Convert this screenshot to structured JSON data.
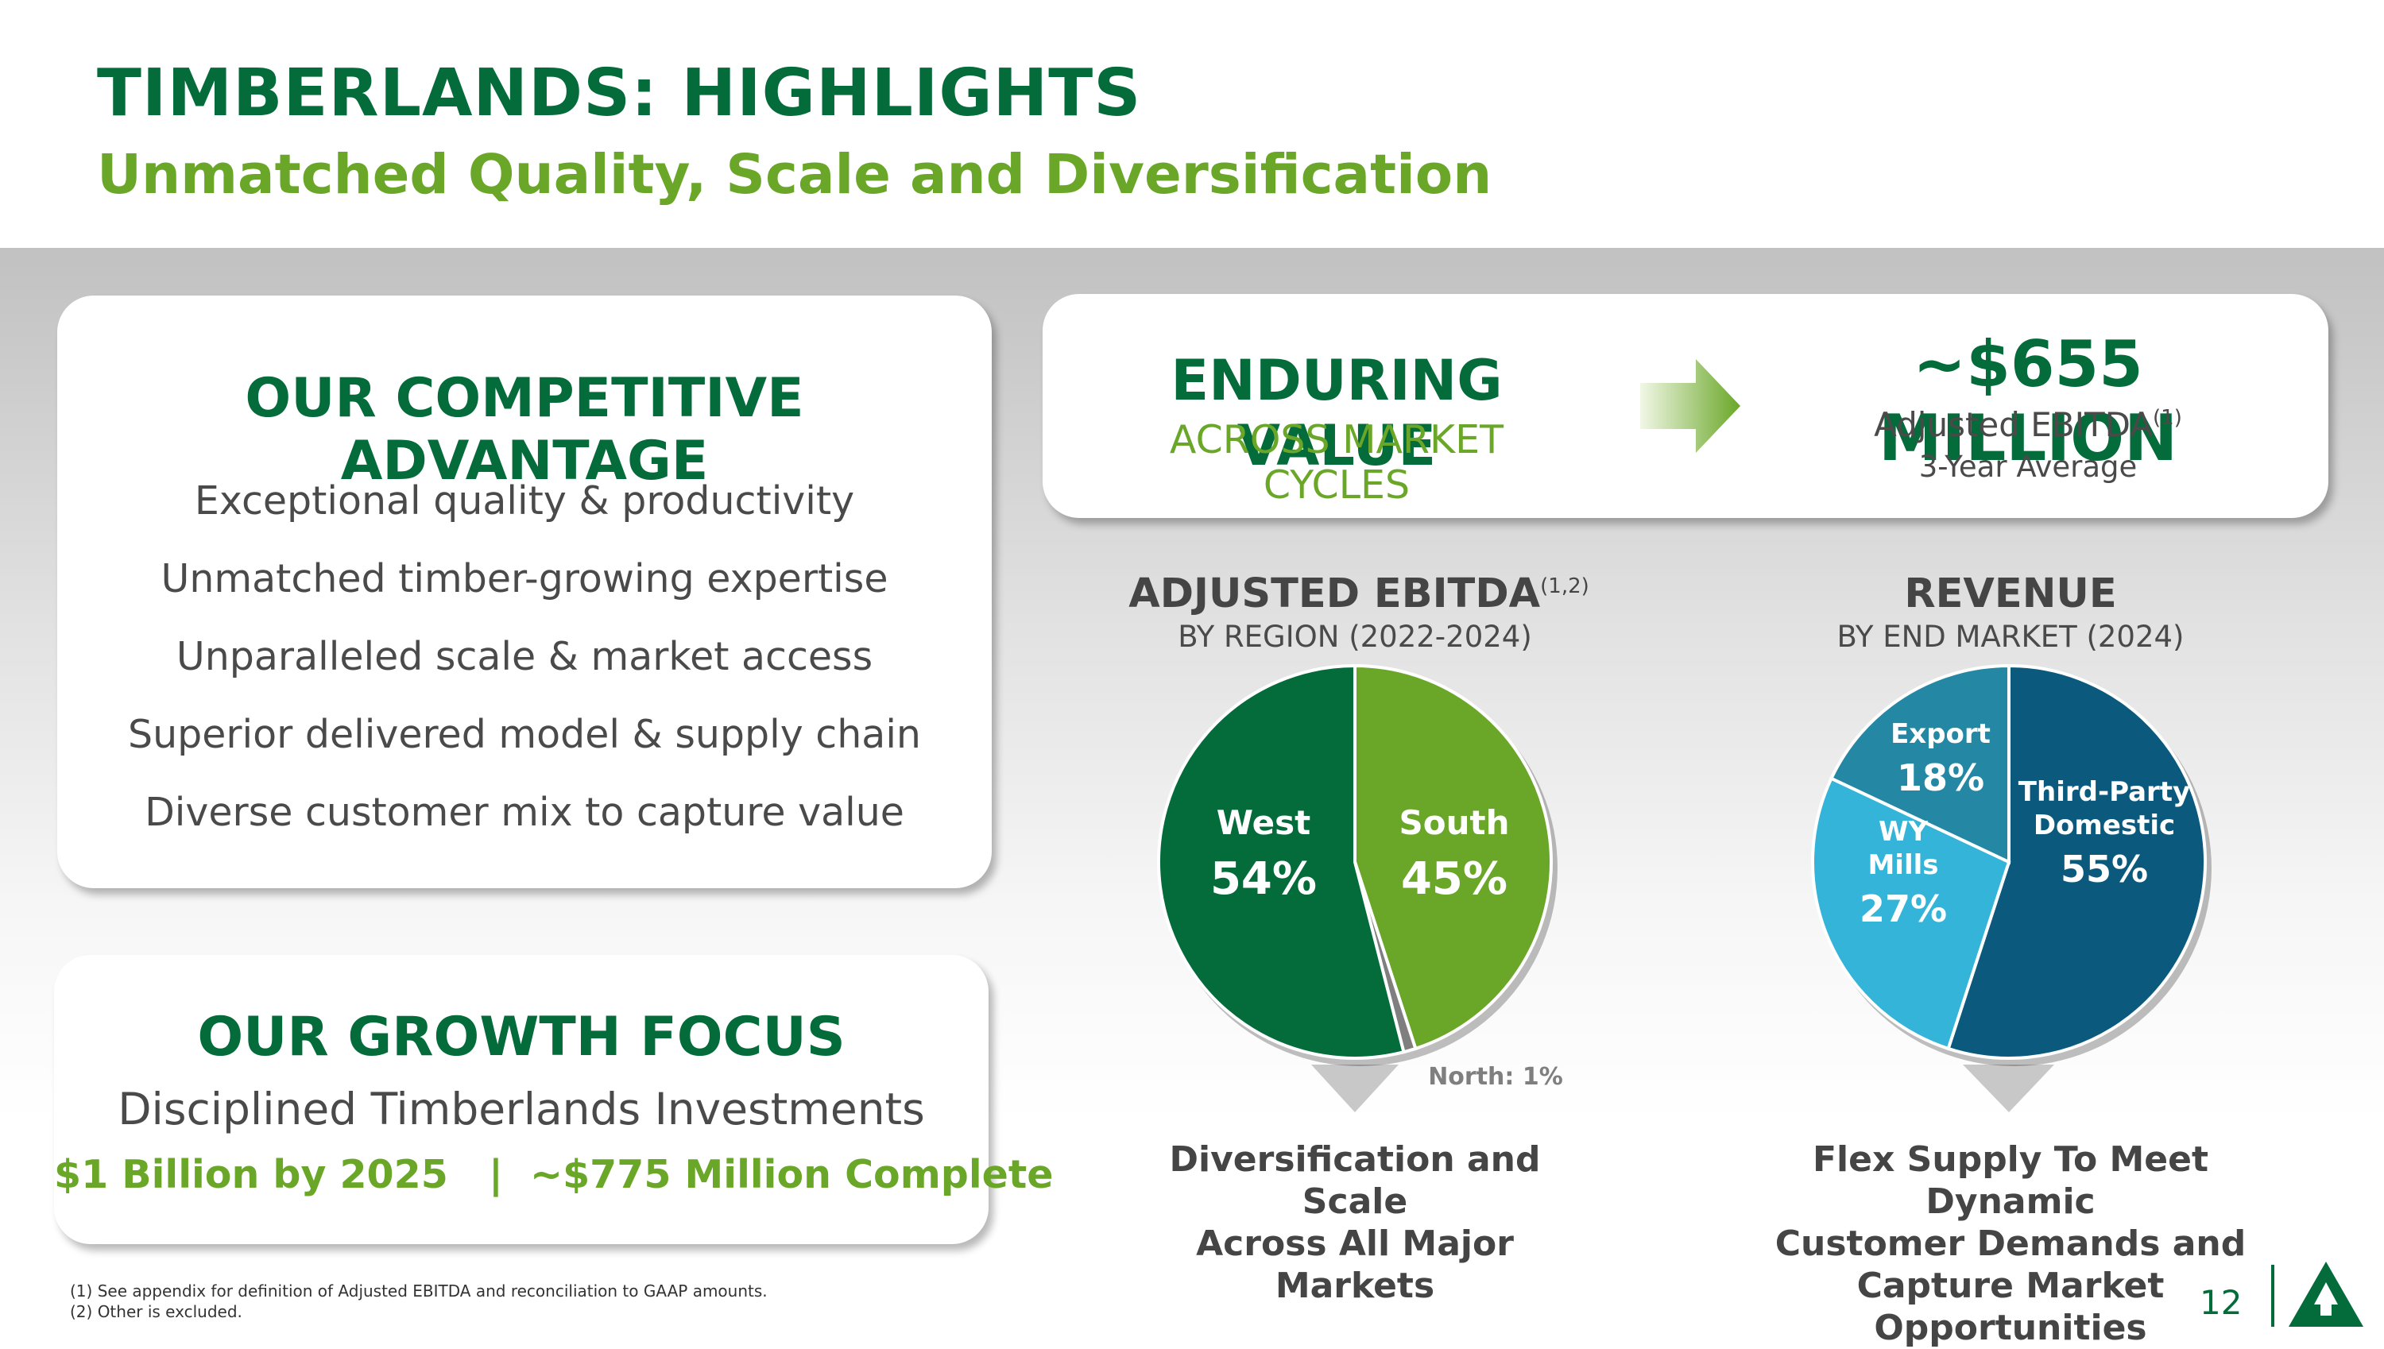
{
  "header": {
    "title": "TIMBERLANDS: HIGHLIGHTS",
    "subtitle": "Unmatched Quality, Scale and Diversification"
  },
  "advantage": {
    "title": "OUR COMPETITIVE ADVANTAGE",
    "items": [
      "Exceptional quality & productivity",
      "Unmatched timber-growing expertise",
      "Unparalleled scale & market access",
      "Superior delivered model & supply chain",
      "Diverse customer mix to capture value"
    ]
  },
  "growth": {
    "title": "OUR GROWTH FOCUS",
    "subtitle": "Disciplined Timberlands Investments",
    "goal": "$1 Billion by 2025   |  ~$775 Million Complete"
  },
  "value": {
    "title": "ENDURING VALUE",
    "subtitle": "ACROSS MARKET CYCLES",
    "amount": "~$655 MILLION",
    "label": "Adjusted EBITDA",
    "label_note": "(1)",
    "period": "3-Year Average"
  },
  "colors": {
    "dark_green": "#046b3a",
    "light_green": "#6aa728",
    "grey_slice": "#7f7f7f",
    "navy": "#0b5a7e",
    "light_blue": "#33b4d8",
    "teal": "#2488a5"
  },
  "chart_data": [
    {
      "type": "pie",
      "title": "ADJUSTED EBITDA",
      "title_note": "(1,2)",
      "subtitle": "BY REGION (2022-2024)",
      "slices": [
        {
          "label": "South",
          "value": 45,
          "display": "45%",
          "color": "#6aa728"
        },
        {
          "label": "North",
          "value": 1,
          "display": "North: 1%",
          "color": "#7f7f7f"
        },
        {
          "label": "West",
          "value": 54,
          "display": "54%",
          "color": "#046b3a"
        }
      ],
      "caption": [
        "Diversification and Scale",
        "Across All Major Markets"
      ]
    },
    {
      "type": "pie",
      "title": "REVENUE",
      "subtitle": "BY END MARKET (2024)",
      "slices": [
        {
          "label": "Third-Party Domestic",
          "label_lines": [
            "Third-Party",
            "Domestic"
          ],
          "value": 55,
          "display": "55%",
          "color": "#0b5a7e"
        },
        {
          "label": "WY Mills",
          "label_lines": [
            "WY",
            "Mills"
          ],
          "value": 27,
          "display": "27%",
          "color": "#33b4d8"
        },
        {
          "label": "Export",
          "label_lines": [
            "Export"
          ],
          "value": 18,
          "display": "18%",
          "color": "#2488a5"
        }
      ],
      "caption": [
        "Flex Supply To Meet Dynamic",
        "Customer Demands and",
        "Capture Market Opportunities"
      ]
    }
  ],
  "footer": {
    "notes": [
      "(1) See appendix for definition of Adjusted EBITDA and reconciliation to GAAP amounts.",
      "(2) Other is excluded."
    ],
    "page_number": "12"
  }
}
